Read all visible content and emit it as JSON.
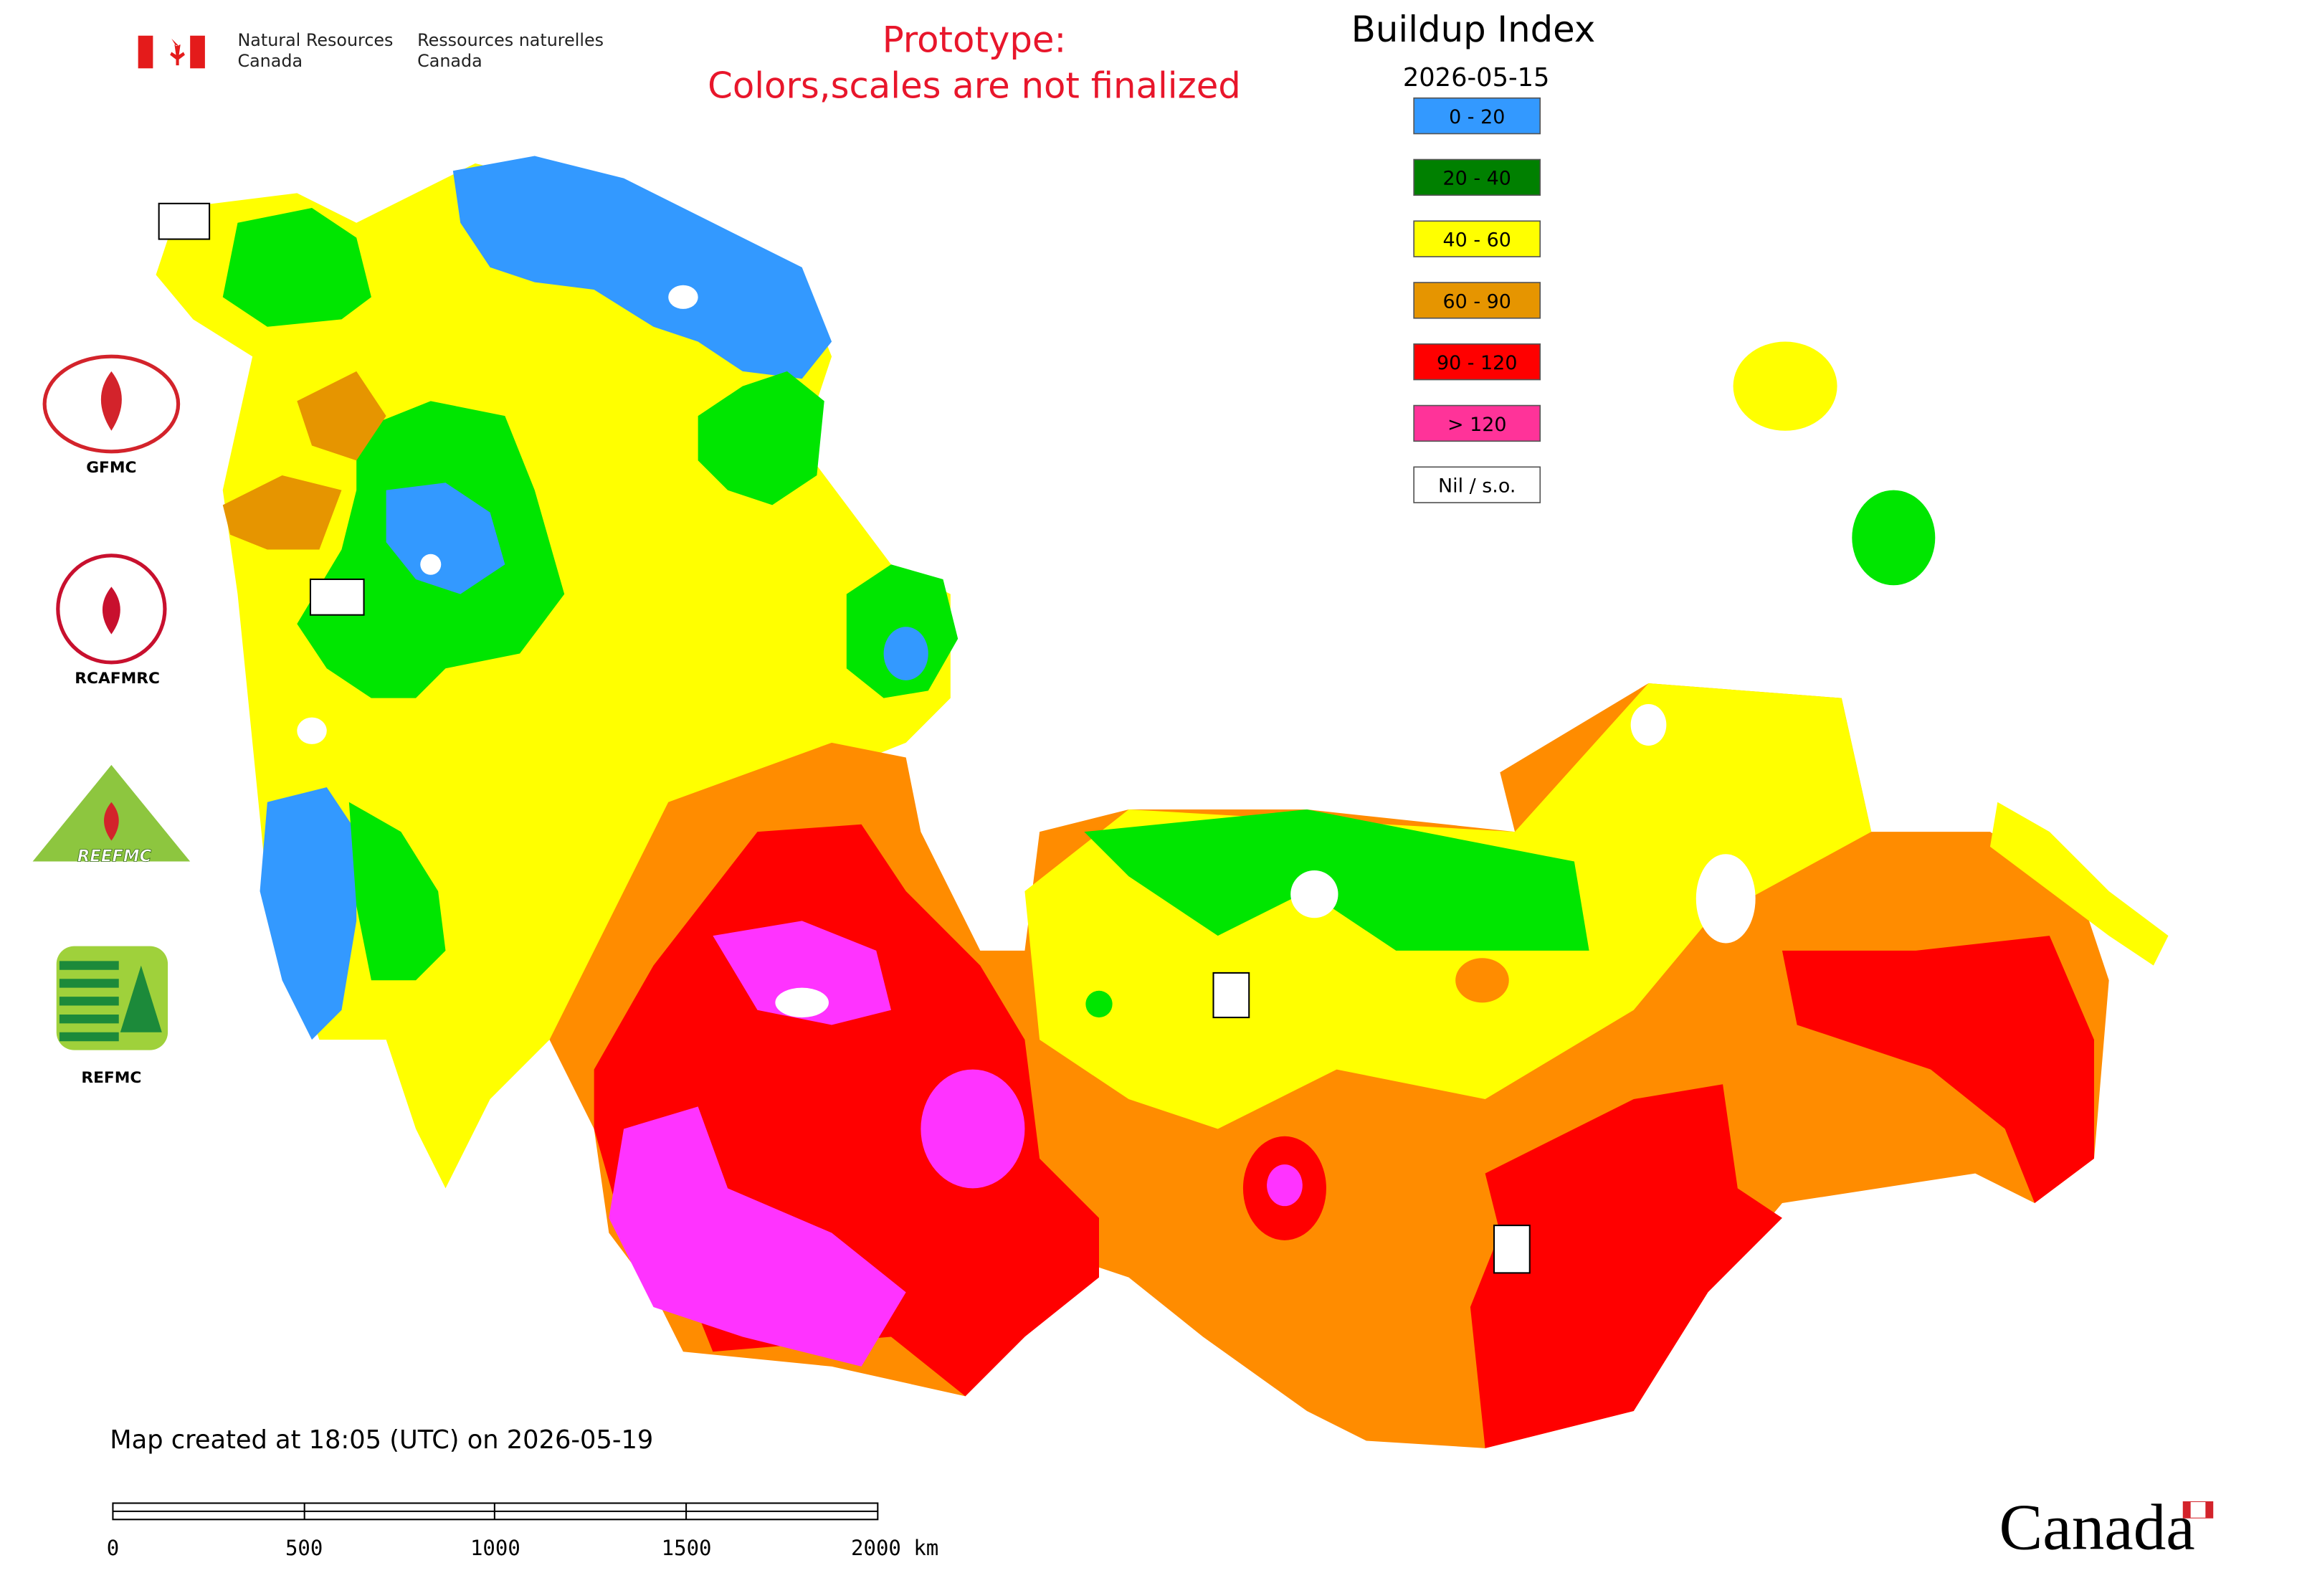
{
  "header": {
    "agency_en_1": "Natural Resources",
    "agency_en_2": "Canada",
    "agency_fr_1": "Ressources naturelles",
    "agency_fr_2": "Canada",
    "notice_1": "Prototype:",
    "notice_2": "Colors,scales are not finalized"
  },
  "legend": {
    "title": "Buildup Index",
    "date": "2026-05-15",
    "items": [
      {
        "label": "0 - 20",
        "color": "#3399ff"
      },
      {
        "label": "20 - 40",
        "color": "#008000"
      },
      {
        "label": "40 - 60",
        "color": "#ffff00"
      },
      {
        "label": "60 - 90",
        "color": "#e69500"
      },
      {
        "label": "90 - 120",
        "color": "#ff0000"
      },
      {
        "label": "> 120",
        "color": "#ff3399"
      },
      {
        "label": "Nil / s.o.",
        "color": "#ffffff"
      }
    ]
  },
  "logos": [
    {
      "label": "GFMC"
    },
    {
      "label": "RCAFMRC"
    },
    {
      "label": "REEFMC"
    },
    {
      "label": "REFMC"
    }
  ],
  "footer": {
    "created": "Map created at 18:05 (UTC) on 2026-05-19",
    "scale_labels": [
      "0",
      "500",
      "1000",
      "1500",
      "2000 km"
    ],
    "wordmark": "Canada"
  }
}
